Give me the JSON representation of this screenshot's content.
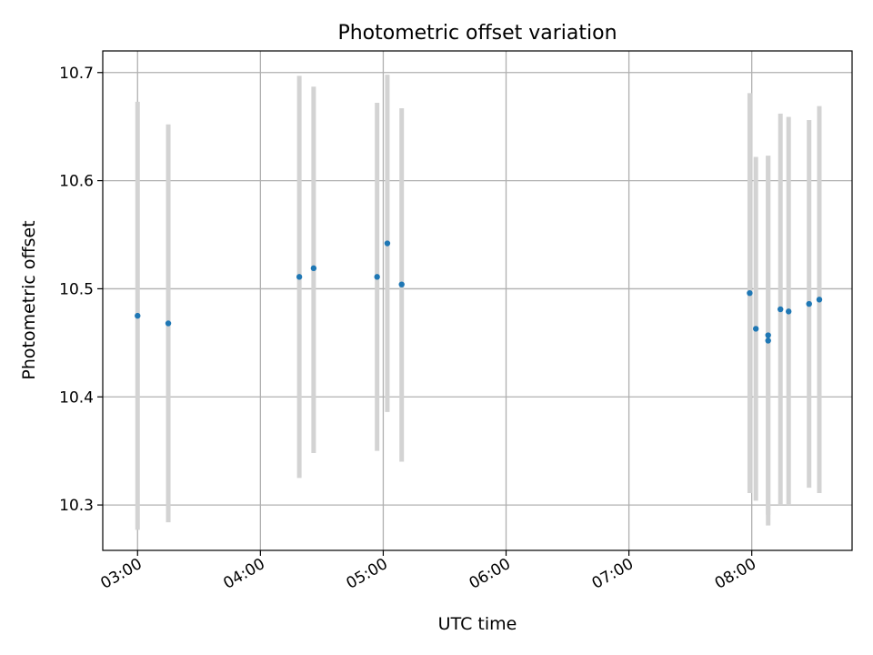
{
  "chart_data": {
    "type": "scatter",
    "title": "Photometric offset variation",
    "xlabel": "UTC time",
    "ylabel": "Photometric offset",
    "x_type": "time",
    "xlim": [
      "02:43",
      "08:49"
    ],
    "ylim": [
      10.258,
      10.72
    ],
    "x_ticks": [
      "03:00",
      "04:00",
      "05:00",
      "06:00",
      "07:00",
      "08:00"
    ],
    "y_ticks": [
      10.3,
      10.4,
      10.5,
      10.6,
      10.7
    ],
    "y_tick_labels": [
      "10.3",
      "10.4",
      "10.5",
      "10.6",
      "10.7"
    ],
    "grid": true,
    "colors": {
      "marker": "#1f77b4",
      "errorbar": "#d3d3d3",
      "grid": "#b0b0b0"
    },
    "points": [
      {
        "x": "03:00",
        "y": 10.475,
        "low": 10.277,
        "high": 10.673
      },
      {
        "x": "03:15",
        "y": 10.468,
        "low": 10.284,
        "high": 10.652
      },
      {
        "x": "04:19",
        "y": 10.511,
        "low": 10.325,
        "high": 10.697
      },
      {
        "x": "04:26",
        "y": 10.519,
        "low": 10.348,
        "high": 10.687
      },
      {
        "x": "04:57",
        "y": 10.511,
        "low": 10.35,
        "high": 10.672
      },
      {
        "x": "05:02",
        "y": 10.542,
        "low": 10.386,
        "high": 10.698
      },
      {
        "x": "05:09",
        "y": 10.504,
        "low": 10.34,
        "high": 10.667
      },
      {
        "x": "07:59",
        "y": 10.496,
        "low": 10.311,
        "high": 10.681
      },
      {
        "x": "08:02",
        "y": 10.463,
        "low": 10.304,
        "high": 10.622
      },
      {
        "x": "08:08",
        "y": 10.457,
        "low": 10.291,
        "high": 10.623
      },
      {
        "x": "08:08",
        "y": 10.452,
        "low": 10.281,
        "high": 10.623
      },
      {
        "x": "08:14",
        "y": 10.481,
        "low": 10.3,
        "high": 10.662
      },
      {
        "x": "08:18",
        "y": 10.479,
        "low": 10.3,
        "high": 10.659
      },
      {
        "x": "08:28",
        "y": 10.486,
        "low": 10.316,
        "high": 10.656
      },
      {
        "x": "08:33",
        "y": 10.49,
        "low": 10.311,
        "high": 10.669
      }
    ]
  }
}
